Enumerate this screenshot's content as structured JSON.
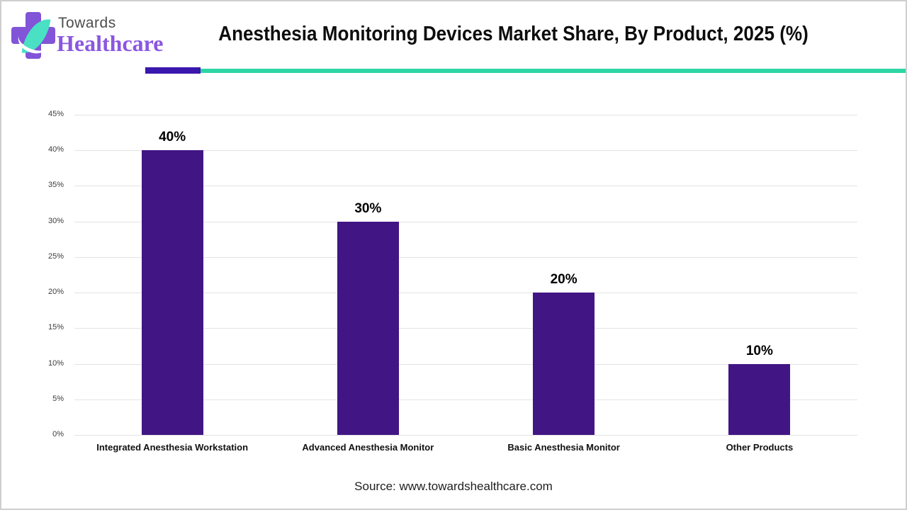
{
  "header": {
    "logo": {
      "brand_top": "Towards",
      "brand_bottom": "Healthcare",
      "cross_color": "#8154d8",
      "leaf_color": "#4ae0c3",
      "towards_color": "#4d4d4d",
      "healthcare_color": "#8a57e0"
    },
    "title": "Anesthesia Monitoring Devices Market Share, By Product, 2025 (%)",
    "divider": {
      "purple_color": "#3a17ad",
      "teal_color": "#30d5a5"
    }
  },
  "chart_data": {
    "type": "bar",
    "title": "Anesthesia Monitoring Devices Market Share, By Product, 2025 (%)",
    "categories": [
      "Integrated Anesthesia Workstation",
      "Advanced Anesthesia Monitor",
      "Basic Anesthesia Monitor",
      "Other Products"
    ],
    "values": [
      40,
      30,
      20,
      10
    ],
    "value_labels": [
      "40%",
      "30%",
      "20%",
      "10%"
    ],
    "xlabel": "",
    "ylabel": "",
    "ylim": [
      0,
      45
    ],
    "ytick_step": 5,
    "ytick_labels": [
      "0%",
      "5%",
      "10%",
      "15%",
      "20%",
      "25%",
      "30%",
      "35%",
      "40%",
      "45%"
    ],
    "bar_color": "#421585",
    "grid": true,
    "gridline_color": "#e3e3e3",
    "legend": "none"
  },
  "footer": {
    "source": "Source: www.towardshealthcare.com"
  }
}
